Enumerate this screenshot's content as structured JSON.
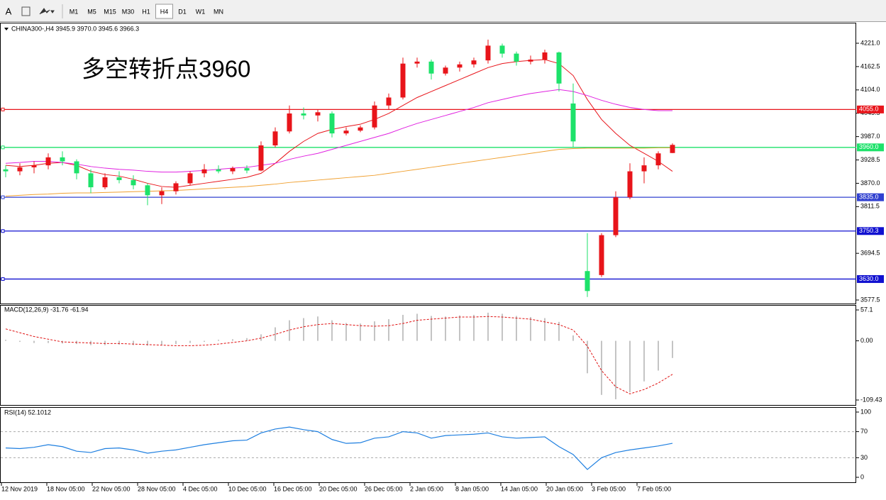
{
  "toolbar": {
    "font_button": "A",
    "timeframes": [
      "M1",
      "M5",
      "M15",
      "M30",
      "H1",
      "H4",
      "D1",
      "W1",
      "MN"
    ],
    "active": "H4"
  },
  "x_axis_labels": [
    "12 Nov 2019",
    "18 Nov 05:00",
    "22 Nov 05:00",
    "28 Nov 05:00",
    "4 Dec 05:00",
    "10 Dec 05:00",
    "16 Dec 05:00",
    "20 Dec 05:00",
    "26 Dec 05:00",
    "2 Jan 05:00",
    "8 Jan 05:00",
    "14 Jan 05:00",
    "20 Jan 05:00",
    "3 Feb 05:00",
    "7 Feb 05:00"
  ],
  "chart_data": [
    {
      "type": "candlestick",
      "title": "CHINA300-,H4  3945.9 3970.0 3945.6 3966.3",
      "annotation": "多空转折点3960",
      "annotation_color": "#ff0000",
      "up_color": "#e8141a",
      "down_color": "#1de26a",
      "open": [
        3905,
        3900,
        3910,
        3915,
        3935,
        3925,
        3895,
        3860,
        3885,
        3878,
        3865,
        3840,
        3850,
        3870,
        3895,
        3905,
        3900,
        3908,
        3902,
        3965,
        4000,
        4045,
        4040,
        4045,
        3995,
        4002,
        4010,
        4065,
        4085,
        4170,
        4175,
        4145,
        4160,
        4168,
        4178,
        4215,
        4195,
        4175,
        4180,
        4198,
        4070,
        3650,
        3640,
        3740,
        3835,
        3900,
        3915,
        3945.9
      ],
      "high": [
        3915,
        3920,
        3925,
        3945,
        3950,
        3930,
        3905,
        3895,
        3900,
        3890,
        3870,
        3860,
        3875,
        3900,
        3918,
        3915,
        3912,
        3915,
        3975,
        4010,
        4065,
        4060,
        4055,
        4050,
        4010,
        4015,
        4075,
        4095,
        4185,
        4185,
        4180,
        4165,
        4175,
        4185,
        4230,
        4220,
        4200,
        4190,
        4205,
        4200,
        4120,
        3745,
        3745,
        3850,
        3920,
        3935,
        3950,
        3970
      ],
      "low": [
        3885,
        3890,
        3895,
        3905,
        3915,
        3880,
        3845,
        3855,
        3870,
        3855,
        3815,
        3818,
        3842,
        3865,
        3885,
        3895,
        3893,
        3895,
        3900,
        3960,
        3995,
        4030,
        4025,
        3985,
        3990,
        3998,
        4005,
        4055,
        4080,
        4160,
        4130,
        4140,
        4150,
        4160,
        4170,
        4185,
        4165,
        4168,
        4170,
        4100,
        3960,
        3585,
        3635,
        3735,
        3830,
        3870,
        3905,
        3945.6
      ],
      "close": [
        3900,
        3910,
        3915,
        3935,
        3925,
        3895,
        3860,
        3885,
        3878,
        3865,
        3840,
        3850,
        3870,
        3895,
        3905,
        3900,
        3908,
        3902,
        3965,
        4000,
        4045,
        4040,
        4048,
        3995,
        4002,
        4010,
        4065,
        4085,
        4170,
        4175,
        4145,
        4160,
        4168,
        4178,
        4215,
        4195,
        4175,
        4180,
        4198,
        4120,
        3975,
        3600,
        3740,
        3835,
        3900,
        3915,
        3945,
        3966.3
      ],
      "series": [
        {
          "color": "#e8141a",
          "values": [
            3915,
            3912,
            3915,
            3920,
            3922,
            3915,
            3900,
            3892,
            3888,
            3880,
            3870,
            3862,
            3860,
            3865,
            3870,
            3875,
            3880,
            3885,
            3895,
            3920,
            3950,
            3975,
            3995,
            4005,
            4012,
            4018,
            4030,
            4045,
            4065,
            4085,
            4100,
            4115,
            4130,
            4145,
            4160,
            4170,
            4175,
            4178,
            4180,
            4170,
            4140,
            4080,
            4030,
            3995,
            3965,
            3945,
            3925,
            3900
          ]
        },
        {
          "color": "#e020e0",
          "values": [
            3920,
            3922,
            3925,
            3925,
            3922,
            3918,
            3912,
            3908,
            3905,
            3903,
            3900,
            3898,
            3898,
            3900,
            3902,
            3905,
            3908,
            3910,
            3915,
            3920,
            3930,
            3938,
            3945,
            3955,
            3965,
            3975,
            3985,
            3995,
            4008,
            4020,
            4030,
            4040,
            4050,
            4060,
            4072,
            4080,
            4088,
            4095,
            4100,
            4105,
            4100,
            4090,
            4078,
            4068,
            4060,
            4055,
            4052,
            4052
          ]
        },
        {
          "color": "#f0a030",
          "values": [
            3838,
            3840,
            3842,
            3843,
            3845,
            3846,
            3846,
            3847,
            3848,
            3849,
            3850,
            3851,
            3852,
            3854,
            3856,
            3858,
            3860,
            3862,
            3865,
            3868,
            3872,
            3875,
            3878,
            3881,
            3884,
            3887,
            3890,
            3895,
            3900,
            3905,
            3910,
            3915,
            3920,
            3925,
            3930,
            3935,
            3940,
            3945,
            3950,
            3955,
            3957,
            3958,
            3958,
            3958,
            3958,
            3958,
            3959,
            3959
          ]
        }
      ],
      "levels": [
        {
          "value": 4055,
          "label": "4055.0",
          "color": "#e8141a"
        },
        {
          "value": 3960,
          "label": "3960.0",
          "color": "#1de26a"
        },
        {
          "value": 3835,
          "label": "3835.0",
          "color": "#3040d0"
        },
        {
          "value": 3750.3,
          "label": "3750.3",
          "color": "#1010d0"
        },
        {
          "value": 3630,
          "label": "3630.0",
          "color": "#1010d0"
        }
      ],
      "ylim": [
        3568.6,
        4272.5
      ],
      "yticks": [
        {
          "value": 4221,
          "label": "4221.0"
        },
        {
          "value": 4162.5,
          "label": "4162.5"
        },
        {
          "value": 4104,
          "label": "4104.0"
        },
        {
          "value": 4045.5,
          "label": "4045.5"
        },
        {
          "value": 3987,
          "label": "3987.0"
        },
        3928.5,
        {
          "value": 3870,
          "label": "3870.0"
        },
        3811.5,
        3694.5,
        3577.5
      ]
    },
    {
      "type": "macd",
      "title": "MACD(12,26,9) -31.76 -61.94",
      "color": "#b0b0b0",
      "signal_color": "#e01010",
      "values": [
        2,
        -2,
        -4,
        -4,
        -5,
        -6,
        -8,
        -8,
        -7,
        -8,
        -9,
        -8,
        -6,
        -4,
        -2,
        2,
        3,
        5,
        12,
        25,
        38,
        42,
        45,
        38,
        33,
        32,
        36,
        40,
        48,
        50,
        46,
        45,
        47,
        48,
        52,
        50,
        46,
        44,
        42,
        35,
        10,
        -60,
        -100,
        -108,
        -95,
        -75,
        -55,
        -31.76
      ],
      "signal": [
        22,
        15,
        8,
        3,
        -2,
        -3,
        -4,
        -5,
        -5,
        -6,
        -7,
        -8,
        -9,
        -9,
        -8,
        -6,
        -3,
        0,
        5,
        12,
        20,
        26,
        30,
        32,
        30,
        28,
        27,
        28,
        32,
        38,
        40,
        42,
        44,
        44,
        45,
        44,
        42,
        40,
        35,
        30,
        20,
        -10,
        -55,
        -85,
        -98,
        -90,
        -78,
        -61.94
      ],
      "ylim": [
        -119.9,
        66.3
      ],
      "yticks": [
        57.1,
        {
          "value": 0,
          "label": "0.00"
        },
        -109.43
      ]
    },
    {
      "type": "rsi",
      "title": "RSI(14) 52.1012",
      "color": "#1e7fe0",
      "values": [
        45,
        44,
        46,
        50,
        47,
        40,
        38,
        44,
        45,
        42,
        37,
        40,
        42,
        46,
        50,
        53,
        56,
        57,
        68,
        74,
        77,
        73,
        70,
        58,
        52,
        53,
        60,
        62,
        70,
        68,
        60,
        64,
        65,
        66,
        68,
        62,
        60,
        61,
        62,
        47,
        35,
        12,
        30,
        38,
        42,
        45,
        48,
        52.1012
      ],
      "levels": [
        70,
        30
      ],
      "ylim": [
        -7.6,
        107.6
      ],
      "yticks": [
        100,
        70,
        30,
        0
      ]
    }
  ]
}
